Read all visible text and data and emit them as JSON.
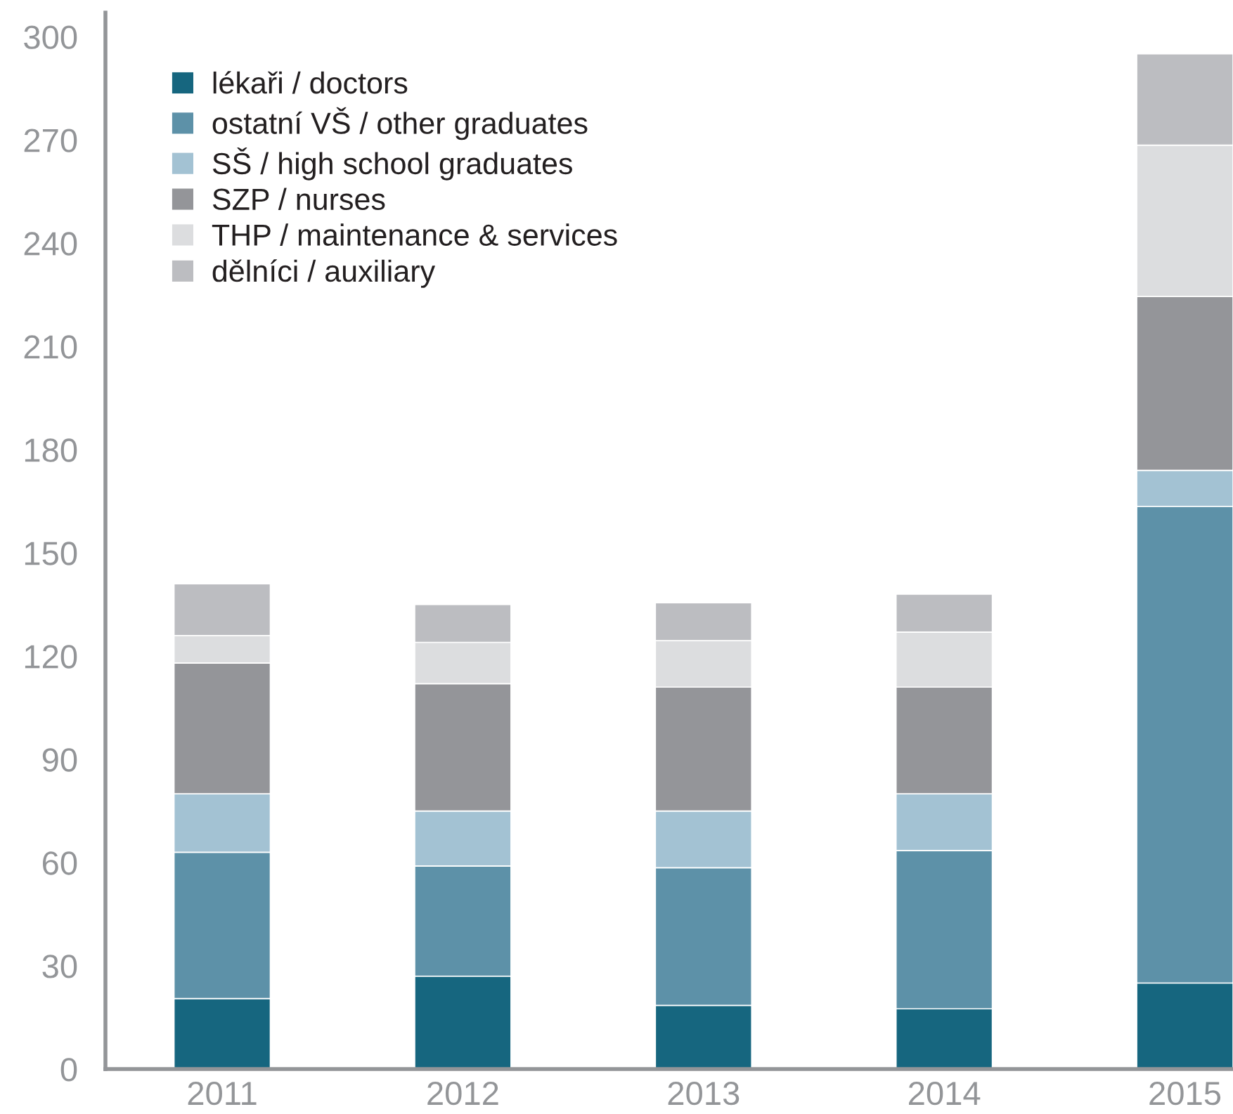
{
  "chart_data": {
    "type": "bar",
    "stacked": true,
    "categories": [
      "2011",
      "2012",
      "2013",
      "2014",
      "2015"
    ],
    "series": [
      {
        "name": "lékaři / doctors",
        "color": "#16667f",
        "values": [
          20.5,
          27,
          18.5,
          17.5,
          25
        ]
      },
      {
        "name": "ostatní VŠ / other graduates",
        "color": "#5d91a8",
        "values": [
          42.5,
          32,
          40,
          46,
          138.5
        ]
      },
      {
        "name": "SŠ / high school graduates",
        "color": "#a3c2d3",
        "values": [
          17,
          16,
          16.5,
          16.5,
          10.5
        ]
      },
      {
        "name": "SZP / nurses",
        "color": "#949599",
        "values": [
          38,
          37,
          36,
          31,
          50.5
        ]
      },
      {
        "name": "THP / maintenance & services",
        "color": "#dcdddf",
        "values": [
          8,
          12,
          13.5,
          16,
          44
        ]
      },
      {
        "name": "dělníci / auxiliary",
        "color": "#bcbdc1",
        "values": [
          15,
          11,
          11,
          11,
          26.5
        ]
      }
    ],
    "ylim": [
      0,
      307
    ],
    "yticks": [
      0,
      30,
      60,
      90,
      120,
      150,
      180,
      210,
      240,
      270,
      300
    ],
    "grid": false,
    "legend": "top left"
  }
}
